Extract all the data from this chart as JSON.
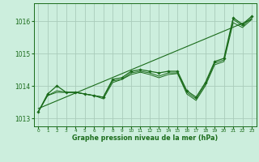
{
  "background_color": "#cceedd",
  "grid_color": "#aaccbb",
  "line_color": "#1a6b1a",
  "xlabel": "Graphe pression niveau de la mer (hPa)",
  "xlim": [
    -0.5,
    23.5
  ],
  "ylim": [
    1012.75,
    1016.55
  ],
  "yticks": [
    1013,
    1014,
    1015,
    1016
  ],
  "xticks": [
    0,
    1,
    2,
    3,
    4,
    5,
    6,
    7,
    8,
    9,
    10,
    11,
    12,
    13,
    14,
    15,
    16,
    17,
    18,
    19,
    20,
    21,
    22,
    23
  ],
  "series_main": [
    1013.2,
    1013.75,
    1014.0,
    1013.8,
    1013.8,
    1013.75,
    1013.7,
    1013.65,
    1014.2,
    1014.25,
    1014.45,
    1014.5,
    1014.45,
    1014.4,
    1014.45,
    1014.45,
    1013.85,
    1013.65,
    1014.1,
    1014.75,
    1014.85,
    1016.1,
    1015.9,
    1016.15
  ],
  "series2": [
    1013.2,
    1013.7,
    1013.85,
    1013.8,
    1013.8,
    1013.75,
    1013.7,
    1013.65,
    1014.15,
    1014.2,
    1014.4,
    1014.45,
    1014.4,
    1014.3,
    1014.4,
    1014.4,
    1013.8,
    1013.6,
    1014.05,
    1014.7,
    1014.8,
    1016.05,
    1015.85,
    1016.1
  ],
  "series3": [
    1013.2,
    1013.7,
    1013.8,
    1013.8,
    1013.8,
    1013.75,
    1013.7,
    1013.6,
    1014.1,
    1014.2,
    1014.35,
    1014.42,
    1014.35,
    1014.25,
    1014.35,
    1014.38,
    1013.75,
    1013.55,
    1014.0,
    1014.65,
    1014.75,
    1015.95,
    1015.8,
    1016.05
  ],
  "trend_line": [
    [
      0,
      1013.3
    ],
    [
      23,
      1016.05
    ]
  ],
  "figsize": [
    3.2,
    2.0
  ],
  "dpi": 100
}
